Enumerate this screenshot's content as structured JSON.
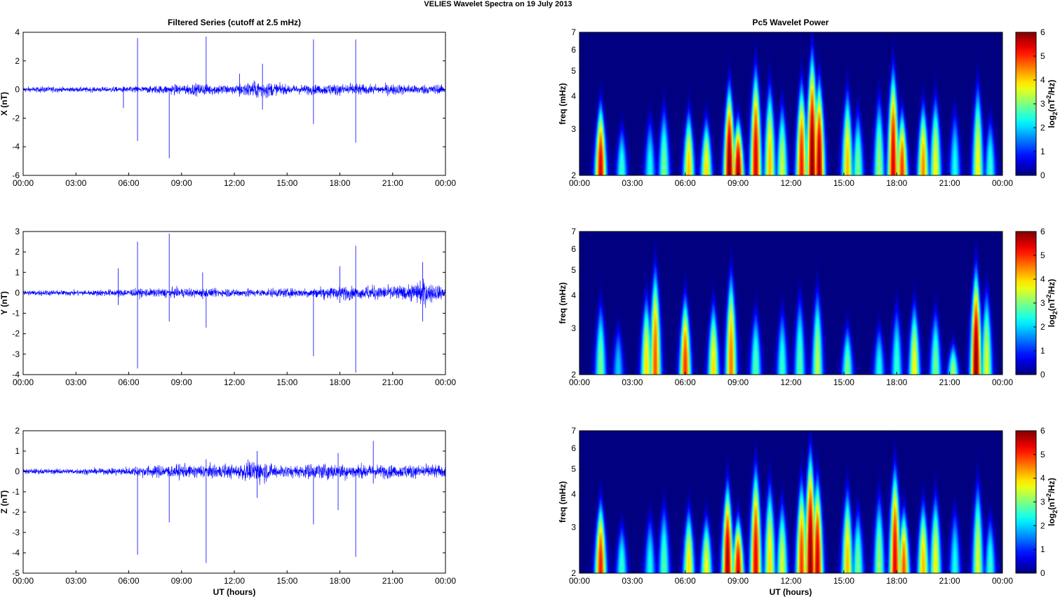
{
  "figure": {
    "title": "VELIES Wavelet Spectra on 19 July      2013",
    "left_column_title": "Filtered Series (cutoff at 2.5 mHz)",
    "right_column_title": "Pc5 Wavelet Power",
    "time_axis_label": "UT (hours)"
  },
  "chart_data": [
    {
      "type": "line",
      "panel": "X",
      "title": "Filtered Series (cutoff at 2.5 mHz)",
      "xlabel": "",
      "ylabel": "X (nT)",
      "xlim": [
        0,
        24
      ],
      "ylim": [
        -6,
        4
      ],
      "x_ticks": [
        "00:00",
        "03:00",
        "06:00",
        "09:00",
        "12:00",
        "15:00",
        "18:00",
        "21:00",
        "00:00"
      ],
      "y_ticks": [
        -6,
        -4,
        -2,
        0,
        2,
        4
      ],
      "color": "#0000ff",
      "activity": [
        [
          0,
          0.15
        ],
        [
          1,
          0.18
        ],
        [
          3,
          0.15
        ],
        [
          5,
          0.17
        ],
        [
          6,
          0.2
        ],
        [
          7.5,
          0.25
        ],
        [
          8.5,
          0.3
        ],
        [
          9.5,
          0.35
        ],
        [
          10.5,
          0.35
        ],
        [
          12,
          0.3
        ],
        [
          13.5,
          0.6
        ],
        [
          14,
          0.5
        ],
        [
          15,
          0.3
        ],
        [
          16,
          0.3
        ],
        [
          17,
          0.35
        ],
        [
          18,
          0.35
        ],
        [
          19,
          0.35
        ],
        [
          20,
          0.3
        ],
        [
          21,
          0.32
        ],
        [
          22,
          0.3
        ],
        [
          24,
          0.3
        ]
      ],
      "spikes": [
        [
          6.5,
          3.6,
          -3.6
        ],
        [
          8.3,
          0,
          -4.8
        ],
        [
          10.4,
          3.7,
          0
        ],
        [
          16.5,
          3.5,
          -2.4
        ],
        [
          18.9,
          3.5,
          -3.7
        ],
        [
          13.6,
          1.8,
          -1.4
        ],
        [
          5.7,
          0.2,
          -1.3
        ],
        [
          12.3,
          1.1,
          -0.5
        ]
      ]
    },
    {
      "type": "line",
      "panel": "Y",
      "title": "",
      "xlabel": "",
      "ylabel": "Y (nT)",
      "xlim": [
        0,
        24
      ],
      "ylim": [
        -4,
        3
      ],
      "x_ticks": [
        "00:00",
        "03:00",
        "06:00",
        "09:00",
        "12:00",
        "15:00",
        "18:00",
        "21:00",
        "00:00"
      ],
      "y_ticks": [
        -4,
        -3,
        -2,
        -1,
        0,
        1,
        2,
        3
      ],
      "color": "#0000ff",
      "activity": [
        [
          0,
          0.12
        ],
        [
          3,
          0.12
        ],
        [
          5,
          0.15
        ],
        [
          6,
          0.18
        ],
        [
          8,
          0.2
        ],
        [
          10,
          0.2
        ],
        [
          12,
          0.18
        ],
        [
          14,
          0.18
        ],
        [
          16,
          0.2
        ],
        [
          17,
          0.28
        ],
        [
          18,
          0.3
        ],
        [
          19,
          0.3
        ],
        [
          20,
          0.3
        ],
        [
          21,
          0.3
        ],
        [
          22,
          0.35
        ],
        [
          22.7,
          0.65
        ],
        [
          23,
          0.4
        ],
        [
          24,
          0.25
        ]
      ],
      "spikes": [
        [
          6.5,
          2.5,
          -3.7
        ],
        [
          8.3,
          2.9,
          -1.4
        ],
        [
          10.4,
          0,
          -1.7
        ],
        [
          16.5,
          0,
          -3.1
        ],
        [
          18.9,
          2.3,
          -3.9
        ],
        [
          22.7,
          1.5,
          -1.4
        ],
        [
          5.4,
          1.2,
          -0.6
        ],
        [
          10.2,
          1.0,
          -0.3
        ],
        [
          18.0,
          1.3,
          -0.5
        ]
      ]
    },
    {
      "type": "line",
      "panel": "Z",
      "title": "",
      "xlabel": "UT (hours)",
      "ylabel": "Z (nT)",
      "xlim": [
        0,
        24
      ],
      "ylim": [
        -5,
        2
      ],
      "x_ticks": [
        "00:00",
        "03:00",
        "06:00",
        "09:00",
        "12:00",
        "15:00",
        "18:00",
        "21:00",
        "00:00"
      ],
      "y_ticks": [
        -5,
        -4,
        -3,
        -2,
        -1,
        0,
        1,
        2
      ],
      "color": "#0000ff",
      "activity": [
        [
          0,
          0.12
        ],
        [
          3,
          0.12
        ],
        [
          5,
          0.15
        ],
        [
          6,
          0.2
        ],
        [
          8,
          0.3
        ],
        [
          9.5,
          0.3
        ],
        [
          10.5,
          0.3
        ],
        [
          12,
          0.3
        ],
        [
          13.3,
          0.55
        ],
        [
          14,
          0.35
        ],
        [
          15,
          0.25
        ],
        [
          16,
          0.3
        ],
        [
          17,
          0.35
        ],
        [
          18,
          0.35
        ],
        [
          19,
          0.35
        ],
        [
          20,
          0.3
        ],
        [
          21,
          0.3
        ],
        [
          24,
          0.28
        ]
      ],
      "spikes": [
        [
          6.5,
          0,
          -4.1
        ],
        [
          8.3,
          0,
          -2.5
        ],
        [
          10.4,
          0.6,
          -4.5
        ],
        [
          16.5,
          0,
          -2.6
        ],
        [
          18.9,
          0,
          -4.2
        ],
        [
          17.9,
          0.9,
          -1.9
        ],
        [
          19.9,
          1.5,
          -0.6
        ],
        [
          13.3,
          1.0,
          -1.3
        ]
      ]
    },
    {
      "type": "heatmap",
      "panel": "X",
      "title": "Pc5 Wavelet Power",
      "xlabel": "",
      "ylabel": "freq (mHz)",
      "xlim": [
        0,
        24
      ],
      "ylim": [
        2,
        7
      ],
      "yscale": "log",
      "x_ticks": [
        "00:00",
        "03:00",
        "06:00",
        "09:00",
        "12:00",
        "15:00",
        "18:00",
        "21:00",
        "00:00"
      ],
      "y_ticks": [
        2,
        3,
        4,
        5,
        6,
        7
      ],
      "colorbar": {
        "label": "log2(nT^2/Hz)",
        "ticks": [
          0,
          1,
          2,
          3,
          4,
          5,
          6
        ],
        "range": [
          0,
          6
        ],
        "colormap": "jet"
      },
      "bursts": [
        [
          1.2,
          5.5,
          3.6
        ],
        [
          8.5,
          6,
          4.2
        ],
        [
          9,
          5.8,
          3.2
        ],
        [
          10,
          5.5,
          4.8
        ],
        [
          12.6,
          5.2,
          4.3
        ],
        [
          13.2,
          6,
          5.5
        ],
        [
          13.6,
          5.8,
          4.4
        ],
        [
          17.8,
          5.5,
          4.8
        ],
        [
          18.3,
          5,
          3.4
        ],
        [
          19.5,
          4.5,
          3.6
        ],
        [
          20.2,
          3.8,
          3.8
        ],
        [
          22.6,
          3.8,
          4.2
        ],
        [
          6.2,
          4.2,
          3.4
        ],
        [
          7.2,
          4,
          3.2
        ],
        [
          10.8,
          4.2,
          4.2
        ],
        [
          11.5,
          3.5,
          3.6
        ],
        [
          15.2,
          4.2,
          4
        ],
        [
          2.4,
          2.6,
          3
        ],
        [
          4,
          2.4,
          3.2
        ],
        [
          4.8,
          3,
          3.5
        ],
        [
          15.8,
          3,
          3.4
        ],
        [
          17,
          3.2,
          3.8
        ],
        [
          21.3,
          2.4,
          3.4
        ],
        [
          23.3,
          2.6,
          3.2
        ]
      ]
    },
    {
      "type": "heatmap",
      "panel": "Y",
      "title": "",
      "xlabel": "",
      "ylabel": "freq (mHz)",
      "xlim": [
        0,
        24
      ],
      "ylim": [
        2,
        7
      ],
      "yscale": "log",
      "x_ticks": [
        "00:00",
        "03:00",
        "06:00",
        "09:00",
        "12:00",
        "15:00",
        "18:00",
        "21:00",
        "00:00"
      ],
      "y_ticks": [
        2,
        3,
        4,
        5,
        6,
        7
      ],
      "colorbar": {
        "label": "log2(nT^2/Hz)",
        "ticks": [
          0,
          1,
          2,
          3,
          4,
          5,
          6
        ],
        "range": [
          0,
          6
        ],
        "colormap": "jet"
      },
      "bursts": [
        [
          1.2,
          3,
          3.6
        ],
        [
          2.2,
          2,
          3
        ],
        [
          3.8,
          4,
          3.8
        ],
        [
          4.3,
          4.8,
          4.8
        ],
        [
          6,
          5,
          3.8
        ],
        [
          7.6,
          4,
          3.6
        ],
        [
          8.6,
          4.6,
          4.6
        ],
        [
          10,
          2.8,
          3.4
        ],
        [
          11.5,
          2.6,
          3.4
        ],
        [
          12.5,
          2.8,
          3.8
        ],
        [
          13.5,
          3.4,
          4
        ],
        [
          15.2,
          3,
          3
        ],
        [
          17,
          2.4,
          3
        ],
        [
          18,
          2.6,
          3.5
        ],
        [
          19,
          3.8,
          3.6
        ],
        [
          20.2,
          3,
          3.4
        ],
        [
          21.2,
          3.2,
          2.6
        ],
        [
          22.5,
          6,
          4.8
        ],
        [
          23.1,
          3.6,
          4
        ]
      ]
    },
    {
      "type": "heatmap",
      "panel": "Z",
      "title": "",
      "xlabel": "UT (hours)",
      "ylabel": "freq (mHz)",
      "xlim": [
        0,
        24
      ],
      "ylim": [
        2,
        7
      ],
      "yscale": "log",
      "x_ticks": [
        "00:00",
        "03:00",
        "06:00",
        "09:00",
        "12:00",
        "15:00",
        "18:00",
        "21:00",
        "00:00"
      ],
      "y_ticks": [
        2,
        3,
        4,
        5,
        6,
        7
      ],
      "colorbar": {
        "label": "log2(nT^2/Hz)",
        "ticks": [
          0,
          1,
          2,
          3,
          4,
          5,
          6
        ],
        "range": [
          0,
          6
        ],
        "colormap": "jet"
      },
      "bursts": [
        [
          1.2,
          5.2,
          3.6
        ],
        [
          8.4,
          5.8,
          4.2
        ],
        [
          9,
          5.4,
          3.2
        ],
        [
          10,
          5.4,
          4.8
        ],
        [
          12.6,
          5,
          4.3
        ],
        [
          13.1,
          6,
          5.5
        ],
        [
          13.5,
          5.6,
          4.4
        ],
        [
          17.9,
          5.4,
          4.8
        ],
        [
          18.4,
          4.8,
          3.4
        ],
        [
          19.5,
          4.2,
          3.6
        ],
        [
          20.2,
          3.8,
          3.8
        ],
        [
          22.6,
          3.6,
          4.2
        ],
        [
          6.2,
          4,
          3.4
        ],
        [
          7.2,
          3.8,
          3.2
        ],
        [
          10.8,
          4,
          4.2
        ],
        [
          11.5,
          3.6,
          3.6
        ],
        [
          15.2,
          4.2,
          4
        ],
        [
          2.4,
          2.6,
          3
        ],
        [
          4,
          2.4,
          3.2
        ],
        [
          4.8,
          2.8,
          3.5
        ],
        [
          15.8,
          3,
          3.4
        ],
        [
          17,
          3.2,
          3.8
        ],
        [
          21.3,
          2.4,
          3.4
        ],
        [
          23.3,
          2.6,
          3.2
        ]
      ]
    }
  ]
}
